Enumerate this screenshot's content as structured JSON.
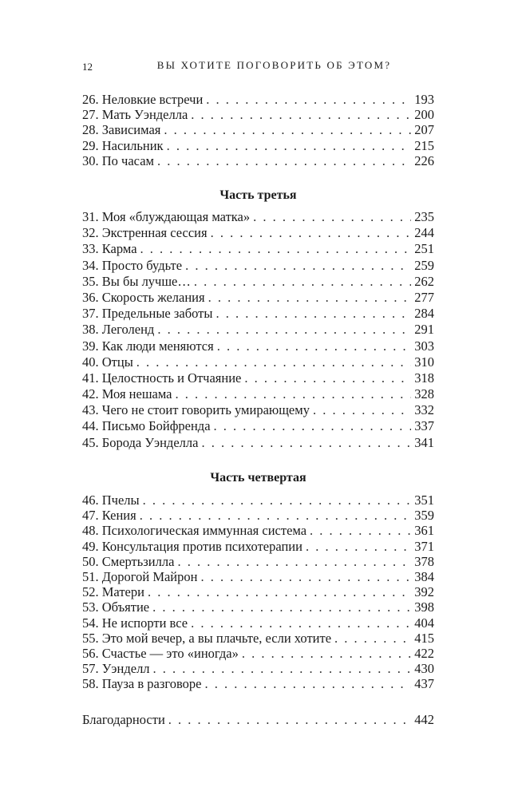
{
  "header": {
    "page_number": "12",
    "running_title": "ВЫ ХОТИТЕ ПОГОВОРИТЬ ОБ ЭТОМ?"
  },
  "section1": [
    {
      "title": "26. Неловкие встречи",
      "page": "193"
    },
    {
      "title": "27. Мать Уэнделла",
      "page": "200"
    },
    {
      "title": "28. Зависимая",
      "page": "207"
    },
    {
      "title": "29. Насильник",
      "page": "215"
    },
    {
      "title": "30. По часам",
      "page": "226"
    }
  ],
  "part3": {
    "heading": "Часть третья",
    "items": [
      {
        "title": "31. Моя «блуждающая матка»",
        "page": "235"
      },
      {
        "title": "32. Экстренная сессия",
        "page": "244"
      },
      {
        "title": "33. Карма",
        "page": "251"
      },
      {
        "title": "34. Просто будьте",
        "page": "259"
      },
      {
        "title": "35. Вы бы лучше…",
        "page": "262"
      },
      {
        "title": "36. Скорость желания",
        "page": "277"
      },
      {
        "title": "37. Предельные заботы",
        "page": "284"
      },
      {
        "title": "38. Леголенд",
        "page": "291"
      },
      {
        "title": "39. Как люди меняются",
        "page": "303"
      },
      {
        "title": "40. Отцы",
        "page": "310"
      },
      {
        "title": "41. Целостность и Отчаяние",
        "page": "318"
      },
      {
        "title": "42. Моя нешама",
        "page": "328"
      },
      {
        "title": "43. Чего не стоит говорить умирающему",
        "page": "332"
      },
      {
        "title": "44. Письмо Бойфренда",
        "page": "337"
      },
      {
        "title": "45. Борода Уэнделла",
        "page": "341"
      }
    ]
  },
  "part4": {
    "heading": "Часть четвертая",
    "items": [
      {
        "title": "46. Пчелы",
        "page": "351"
      },
      {
        "title": "47. Кения",
        "page": "359"
      },
      {
        "title": "48. Психологическая иммунная система",
        "page": "361"
      },
      {
        "title": "49. Консультация против психотерапии",
        "page": "371"
      },
      {
        "title": "50. Смертьзилла",
        "page": "378"
      },
      {
        "title": "51. Дорогой Майрон",
        "page": "384"
      },
      {
        "title": "52. Матери",
        "page": "392"
      },
      {
        "title": "53. Объятие",
        "page": "398"
      },
      {
        "title": "54. Не испорти все",
        "page": "404"
      },
      {
        "title": "55. Это мой вечер, а вы плачьте, если хотите",
        "page": "415"
      },
      {
        "title": "56. Счастье — это «иногда»",
        "page": "422"
      },
      {
        "title": "57. Уэнделл",
        "page": "430"
      },
      {
        "title": "58. Пауза в разговоре",
        "page": "437"
      }
    ]
  },
  "acknowledgements": {
    "title": "Благодарности",
    "page": "442"
  }
}
